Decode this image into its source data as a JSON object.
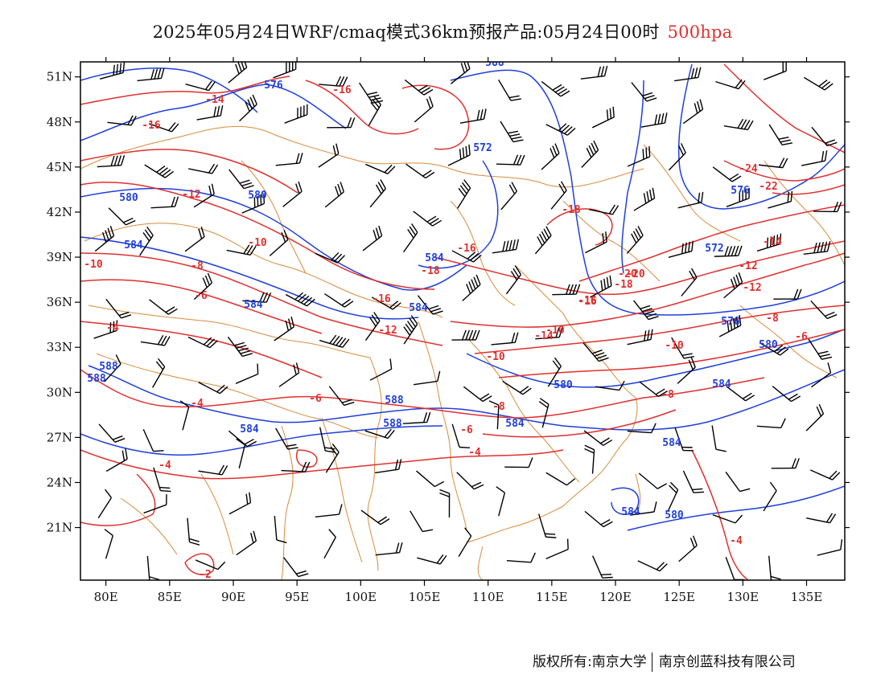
{
  "header": {
    "title": "2025年05月24日WRF/cmaq模式36km预报产品:05月24日00时",
    "level": "500hpa",
    "level_color": "#e0302f"
  },
  "map": {
    "lon_range": [
      78,
      138
    ],
    "lat_range": [
      17.5,
      52
    ],
    "lon_ticks": [
      "80E",
      "85E",
      "90E",
      "95E",
      "100E",
      "105E",
      "110E",
      "115E",
      "120E",
      "125E",
      "130E",
      "135E"
    ],
    "lat_ticks": [
      "51N",
      "48N",
      "45N",
      "42N",
      "39N",
      "36N",
      "33N",
      "30N",
      "27N",
      "24N",
      "21N"
    ],
    "colors": {
      "height_contour": "#1f3fdc",
      "temperature_contour": "#e0302f",
      "boundaries": "#d98a3a",
      "wind_barbs": "#000000"
    },
    "height_labels": [
      "588",
      "576",
      "572",
      "580",
      "580",
      "584",
      "584",
      "584",
      "584",
      "588",
      "580",
      "572",
      "576",
      "580",
      "584",
      "584",
      "588",
      "584",
      "584",
      "588",
      "588",
      "584",
      "580",
      "576"
    ],
    "temperature_labels": [
      "-16",
      "-14",
      "-16",
      "-12",
      "-10",
      "-10",
      "-8",
      "-6",
      "-4",
      "-4",
      "-6",
      "-4",
      "-2",
      "-16",
      "-18",
      "-16",
      "-12",
      "-10",
      "-14",
      "-10",
      "-8",
      "-6",
      "-4",
      "-20",
      "-24",
      "-22",
      "-18",
      "-16",
      "-14",
      "-12",
      "-12",
      "-8",
      "-6",
      "-18",
      "-20",
      "-16",
      "-10",
      "-4",
      "-8"
    ]
  },
  "footer": {
    "copyright": "版权所有:南京大学",
    "company": "南京创蓝科技有限公司"
  }
}
